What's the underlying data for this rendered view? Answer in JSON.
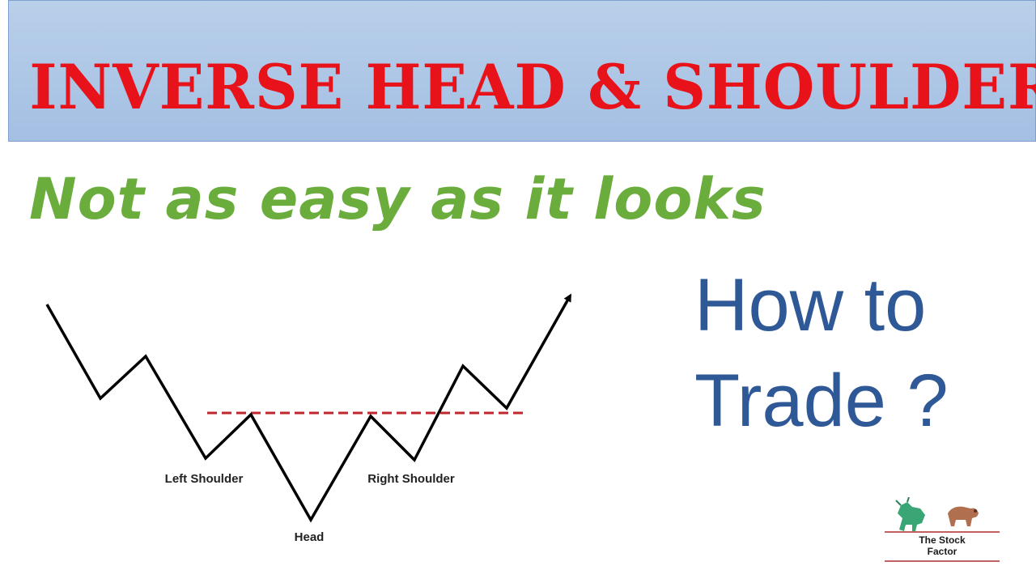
{
  "banner": {
    "title": "INVERSE HEAD & SHOULDER"
  },
  "subtitle": "Not as easy as it looks",
  "cta": {
    "line1": "How to",
    "line2": "Trade ?"
  },
  "diagram": {
    "labels": {
      "left_shoulder": "Left Shoulder",
      "head": "Head",
      "right_shoulder": "Right Shoulder"
    },
    "colors": {
      "line": "#000000",
      "neckline": "#c0272d"
    }
  },
  "logo": {
    "line1": "The Stock",
    "line2": "Factor",
    "icons": [
      "bull-icon",
      "bear-icon"
    ]
  },
  "colors": {
    "banner_title": "#e8131a",
    "subtitle": "#6aad3d",
    "cta": "#2f5897",
    "banner_bg": "#a4bfe3"
  }
}
